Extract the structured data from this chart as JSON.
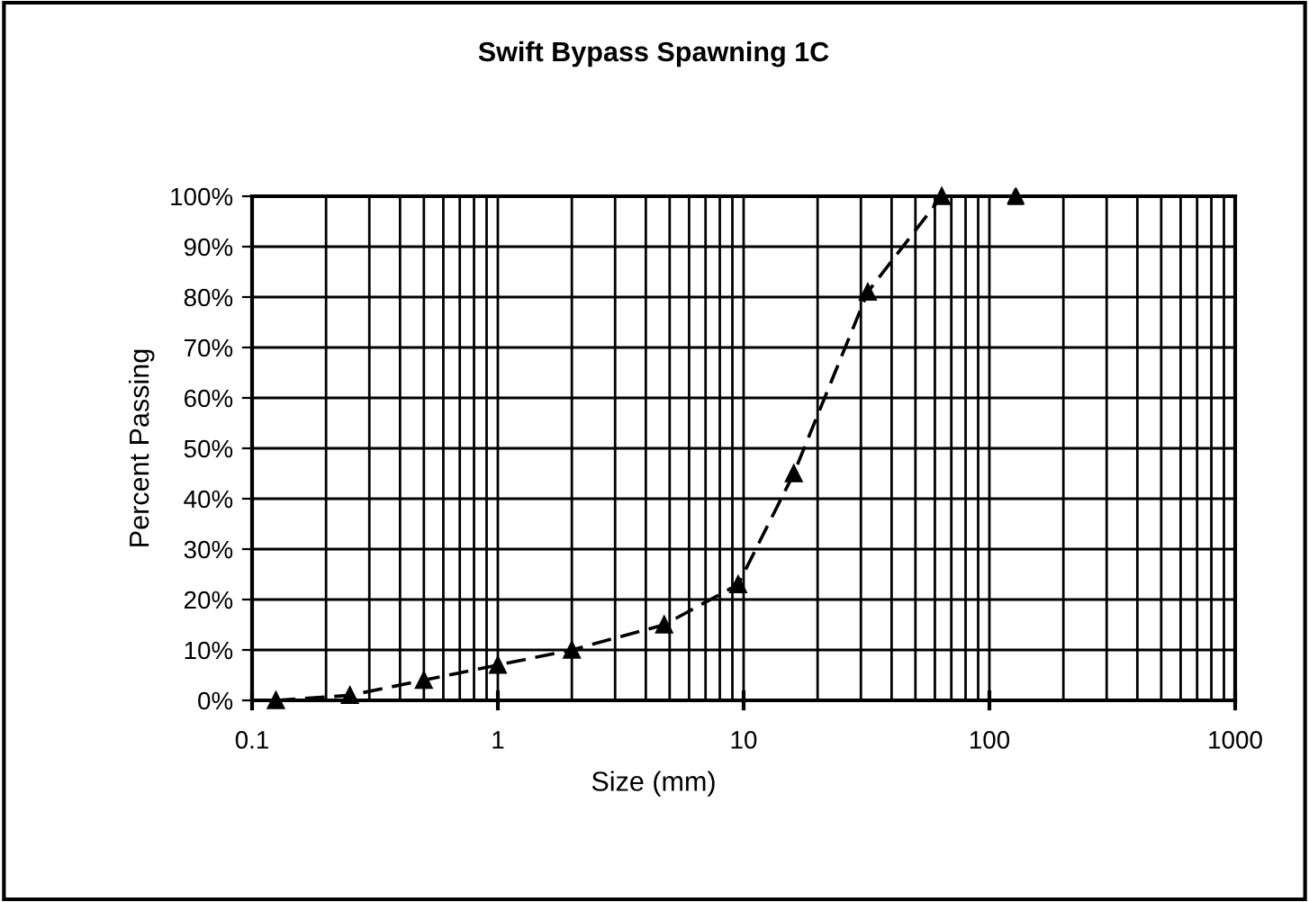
{
  "chart_data": {
    "type": "line",
    "title": "Swift Bypass Spawning 1C",
    "xlabel": "Size (mm)",
    "ylabel": "Percent Passing",
    "log": "x",
    "grid": true,
    "marker": "triangle",
    "line_style": "dashed",
    "series": [
      {
        "color": "#000000",
        "x": [
          0.125,
          0.25,
          0.5,
          1,
          2,
          4.75,
          9.5,
          16,
          32,
          64
        ],
        "values": [
          0,
          1,
          4,
          7,
          10,
          15,
          23,
          45,
          81,
          100
        ]
      },
      {
        "type": "scatter",
        "color": "#000000",
        "x": [
          128
        ],
        "values": [
          100
        ]
      }
    ],
    "xlim": [
      0.1,
      1000
    ],
    "xticks": [
      0.1,
      1,
      10,
      100,
      1000
    ],
    "ylim": [
      0,
      100
    ],
    "yticks": [
      {
        "value": 0,
        "label": "0%"
      },
      {
        "value": 10,
        "label": "10%"
      },
      {
        "value": 20,
        "label": "20%"
      },
      {
        "value": 30,
        "label": "30%"
      },
      {
        "value": 40,
        "label": "40%"
      },
      {
        "value": 50,
        "label": "50%"
      },
      {
        "value": 60,
        "label": "60%"
      },
      {
        "value": 70,
        "label": "70%"
      },
      {
        "value": 80,
        "label": "80%"
      },
      {
        "value": 90,
        "label": "90%"
      },
      {
        "value": 100,
        "label": "100%"
      }
    ]
  }
}
